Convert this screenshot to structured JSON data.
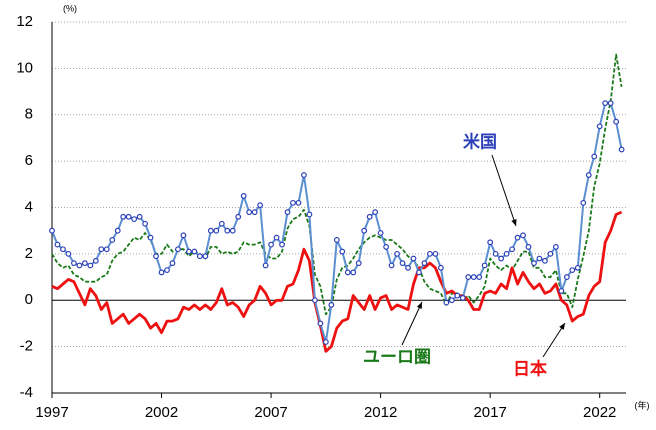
{
  "chart_data": {
    "type": "line",
    "y_unit_label": "(%)",
    "x_unit_label": "(年)",
    "x": [
      1997,
      1997.25,
      1997.5,
      1997.75,
      1998,
      1998.25,
      1998.5,
      1998.75,
      1999,
      1999.25,
      1999.5,
      1999.75,
      2000,
      2000.25,
      2000.5,
      2000.75,
      2001,
      2001.25,
      2001.5,
      2001.75,
      2002,
      2002.25,
      2002.5,
      2002.75,
      2003,
      2003.25,
      2003.5,
      2003.75,
      2004,
      2004.25,
      2004.5,
      2004.75,
      2005,
      2005.25,
      2005.5,
      2005.75,
      2006,
      2006.25,
      2006.5,
      2006.75,
      2007,
      2007.25,
      2007.5,
      2007.75,
      2008,
      2008.25,
      2008.5,
      2008.75,
      2009,
      2009.25,
      2009.5,
      2009.75,
      2010,
      2010.25,
      2010.5,
      2010.75,
      2011,
      2011.25,
      2011.5,
      2011.75,
      2012,
      2012.25,
      2012.5,
      2012.75,
      2013,
      2013.25,
      2013.5,
      2013.75,
      2014,
      2014.25,
      2014.5,
      2014.75,
      2015,
      2015.25,
      2015.5,
      2015.75,
      2016,
      2016.25,
      2016.5,
      2016.75,
      2017,
      2017.25,
      2017.5,
      2017.75,
      2018,
      2018.25,
      2018.5,
      2018.75,
      2019,
      2019.25,
      2019.5,
      2019.75,
      2020,
      2020.25,
      2020.5,
      2020.75,
      2021,
      2021.25,
      2021.5,
      2021.75,
      2022,
      2022.25,
      2022.5,
      2022.75,
      2023
    ],
    "series": [
      {
        "name": "米国",
        "color": "#2b3fb8",
        "line_color": "#5b8fd0",
        "marker": true,
        "dash": false,
        "width": 2,
        "values": [
          3.0,
          2.4,
          2.2,
          2.0,
          1.6,
          1.5,
          1.6,
          1.5,
          1.7,
          2.2,
          2.2,
          2.6,
          3.0,
          3.6,
          3.6,
          3.5,
          3.6,
          3.3,
          2.7,
          1.9,
          1.2,
          1.3,
          1.6,
          2.2,
          2.8,
          2.1,
          2.1,
          1.9,
          1.9,
          3.0,
          3.0,
          3.3,
          3.0,
          3.0,
          3.6,
          4.5,
          3.8,
          3.8,
          4.1,
          1.5,
          2.4,
          2.7,
          2.4,
          3.8,
          4.2,
          4.2,
          5.4,
          3.7,
          0.0,
          -1.0,
          -1.8,
          -0.2,
          2.6,
          2.1,
          1.2,
          1.2,
          1.6,
          3.0,
          3.6,
          3.8,
          2.9,
          2.3,
          1.5,
          2.0,
          1.6,
          1.4,
          1.8,
          1.2,
          1.6,
          2.0,
          2.0,
          1.4,
          -0.1,
          0.0,
          0.2,
          0.1,
          1.0,
          1.0,
          1.0,
          1.5,
          2.5,
          2.0,
          1.8,
          2.0,
          2.2,
          2.7,
          2.8,
          2.3,
          1.6,
          1.8,
          1.7,
          2.0,
          2.3,
          0.4,
          1.0,
          1.3,
          1.4,
          4.2,
          5.4,
          6.2,
          7.5,
          8.5,
          8.5,
          7.7,
          6.5
        ]
      },
      {
        "name": "ユーロ圏",
        "color": "#1a7a1a",
        "marker": false,
        "dash": true,
        "width": 1.8,
        "values": [
          2.0,
          1.6,
          1.4,
          1.5,
          1.1,
          1.0,
          0.8,
          0.8,
          0.8,
          1.0,
          1.1,
          1.7,
          2.0,
          2.1,
          2.4,
          2.7,
          2.6,
          2.9,
          2.6,
          2.0,
          2.0,
          2.4,
          2.1,
          2.2,
          2.2,
          1.9,
          2.1,
          2.0,
          1.8,
          2.3,
          2.3,
          2.0,
          2.1,
          2.0,
          2.1,
          2.5,
          2.4,
          2.4,
          2.5,
          2.0,
          1.8,
          1.8,
          2.1,
          3.1,
          3.5,
          3.6,
          3.9,
          3.2,
          1.1,
          0.6,
          -0.6,
          -0.3,
          0.9,
          1.4,
          1.5,
          1.8,
          2.2,
          2.5,
          2.7,
          2.8,
          2.7,
          2.6,
          2.6,
          2.4,
          2.2,
          1.9,
          1.7,
          1.4,
          0.8,
          0.5,
          0.4,
          0.3,
          -0.2,
          0.3,
          0.3,
          0.0,
          0.2,
          -0.1,
          0.2,
          0.6,
          1.8,
          1.5,
          1.3,
          1.5,
          1.3,
          1.7,
          2.1,
          2.1,
          1.4,
          1.4,
          1.0,
          1.0,
          1.3,
          0.3,
          0.3,
          -0.3,
          0.9,
          1.9,
          3.0,
          4.9,
          5.9,
          7.4,
          8.6,
          10.6,
          9.2
        ]
      },
      {
        "name": "日本",
        "color": "#ee1111",
        "marker": false,
        "dash": false,
        "width": 2.8,
        "values": [
          0.6,
          0.5,
          0.7,
          0.9,
          0.8,
          0.3,
          -0.2,
          0.5,
          0.2,
          -0.4,
          -0.1,
          -1.0,
          -0.8,
          -0.6,
          -1.0,
          -0.8,
          -0.6,
          -0.8,
          -1.2,
          -1.0,
          -1.4,
          -0.9,
          -0.9,
          -0.8,
          -0.3,
          -0.4,
          -0.2,
          -0.4,
          -0.2,
          -0.4,
          -0.1,
          0.5,
          -0.2,
          -0.1,
          -0.3,
          -0.7,
          -0.2,
          0.0,
          0.6,
          0.3,
          -0.2,
          0.0,
          0.0,
          0.6,
          0.7,
          1.3,
          2.2,
          1.7,
          -0.1,
          -1.1,
          -2.2,
          -2.0,
          -1.2,
          -0.9,
          -0.8,
          0.2,
          -0.1,
          -0.4,
          0.2,
          -0.4,
          0.1,
          0.2,
          -0.4,
          -0.2,
          -0.3,
          -0.4,
          0.7,
          1.4,
          1.4,
          1.6,
          1.4,
          0.8,
          0.3,
          0.4,
          0.2,
          0.2,
          0.0,
          -0.4,
          -0.4,
          0.3,
          0.4,
          0.3,
          0.7,
          0.5,
          1.4,
          0.7,
          1.2,
          0.8,
          0.5,
          0.7,
          0.3,
          0.4,
          0.7,
          0.0,
          -0.2,
          -0.9,
          -0.7,
          -0.6,
          0.2,
          0.6,
          0.8,
          2.5,
          3.0,
          3.7,
          3.8
        ]
      }
    ],
    "xlim": [
      1997,
      2023.2
    ],
    "xticks": [
      1997,
      2002,
      2007,
      2012,
      2017,
      2022
    ],
    "ylim": [
      -4,
      12
    ],
    "yticks": [
      -4,
      -2,
      0,
      2,
      4,
      6,
      8,
      10,
      12
    ],
    "grid": true
  }
}
